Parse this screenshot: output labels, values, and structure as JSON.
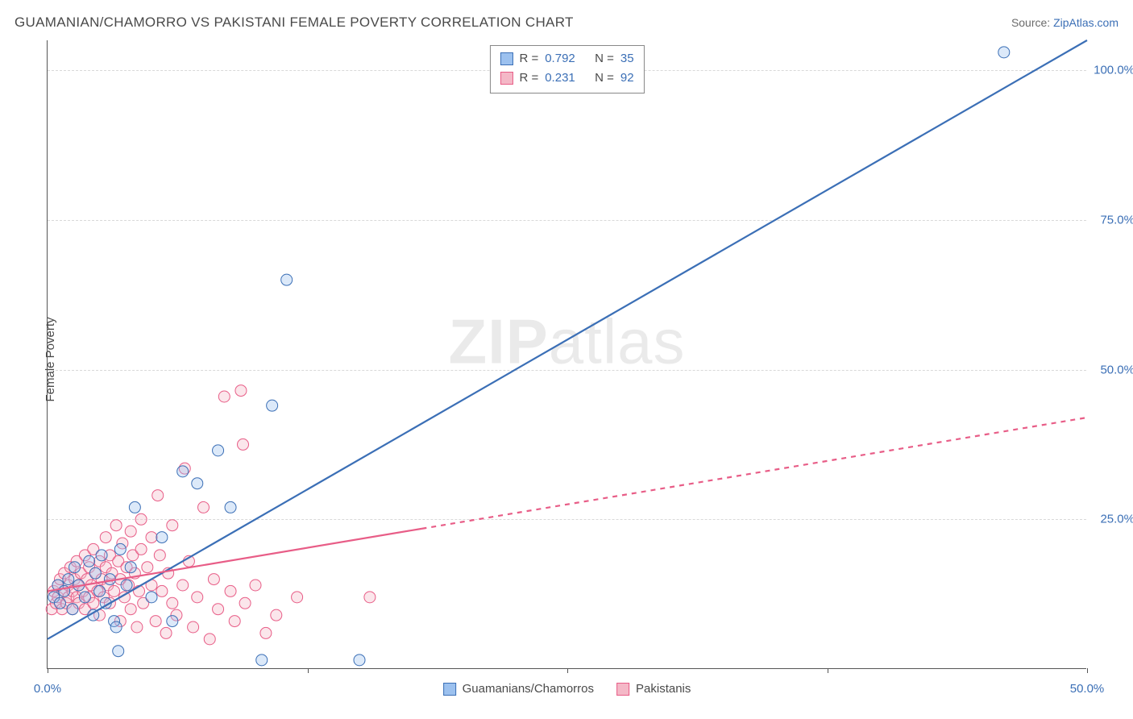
{
  "chart": {
    "type": "scatter-correlation",
    "title": "GUAMANIAN/CHAMORRO VS PAKISTANI FEMALE POVERTY CORRELATION CHART",
    "source_label": "Source: ",
    "source_name": "ZipAtlas.com",
    "ylabel": "Female Poverty",
    "watermark": "ZIPatlas",
    "background_color": "#ffffff",
    "axis_color": "#555555",
    "grid_color": "#d9d9d9",
    "label_color": "#4a4a4a",
    "tick_label_color": "#3b6fb6",
    "title_fontsize": 17,
    "label_fontsize": 15,
    "xlim": [
      0,
      50
    ],
    "ylim": [
      0,
      105
    ],
    "xticks": [
      0,
      12.5,
      25,
      37.5,
      50
    ],
    "xtick_labels": [
      "0.0%",
      "",
      "",
      "",
      "50.0%"
    ],
    "yticks": [
      25,
      50,
      75,
      100
    ],
    "ytick_labels": [
      "25.0%",
      "50.0%",
      "75.0%",
      "100.0%"
    ],
    "series": [
      {
        "key": "guamanian",
        "label": "Guamanians/Chamorros",
        "R": "0.792",
        "N": "35",
        "fill": "#9cc1ef",
        "stroke": "#3b6fb6",
        "trend": {
          "x1": 0,
          "y1": 5,
          "x2": 50,
          "y2": 105,
          "solid_until_x": 50,
          "width": 2.2
        },
        "points": [
          [
            0.3,
            12
          ],
          [
            0.5,
            14
          ],
          [
            0.6,
            11
          ],
          [
            0.8,
            13
          ],
          [
            1.0,
            15
          ],
          [
            1.2,
            10
          ],
          [
            1.3,
            17
          ],
          [
            1.5,
            14
          ],
          [
            1.8,
            12
          ],
          [
            2.0,
            18
          ],
          [
            2.2,
            9
          ],
          [
            2.3,
            16
          ],
          [
            2.5,
            13
          ],
          [
            2.8,
            11
          ],
          [
            3.0,
            15
          ],
          [
            3.2,
            8
          ],
          [
            3.4,
            3
          ],
          [
            3.5,
            20
          ],
          [
            3.8,
            14
          ],
          [
            4.0,
            17
          ],
          [
            4.2,
            27
          ],
          [
            5.0,
            12
          ],
          [
            5.5,
            22
          ],
          [
            6.0,
            8
          ],
          [
            6.5,
            33
          ],
          [
            7.2,
            31
          ],
          [
            8.2,
            36.5
          ],
          [
            8.8,
            27
          ],
          [
            10.3,
            1.5
          ],
          [
            10.8,
            44
          ],
          [
            11.5,
            65
          ],
          [
            15.0,
            1.5
          ],
          [
            3.3,
            7
          ],
          [
            2.6,
            19
          ],
          [
            46,
            103
          ]
        ]
      },
      {
        "key": "pakistani",
        "label": "Pakistanis",
        "R": "0.231",
        "N": "92",
        "fill": "#f4b8c7",
        "stroke": "#e85d87",
        "trend": {
          "x1": 0,
          "y1": 13,
          "x2": 50,
          "y2": 42,
          "solid_until_x": 18,
          "width": 2.2
        },
        "points": [
          [
            0.2,
            10
          ],
          [
            0.3,
            13
          ],
          [
            0.4,
            11
          ],
          [
            0.5,
            14
          ],
          [
            0.5,
            12
          ],
          [
            0.6,
            15
          ],
          [
            0.7,
            10
          ],
          [
            0.8,
            13
          ],
          [
            0.8,
            16
          ],
          [
            0.9,
            11
          ],
          [
            1.0,
            14
          ],
          [
            1.0,
            12
          ],
          [
            1.1,
            17
          ],
          [
            1.2,
            13
          ],
          [
            1.2,
            10
          ],
          [
            1.3,
            15
          ],
          [
            1.4,
            12
          ],
          [
            1.4,
            18
          ],
          [
            1.5,
            14
          ],
          [
            1.5,
            11
          ],
          [
            1.6,
            16
          ],
          [
            1.7,
            13
          ],
          [
            1.8,
            19
          ],
          [
            1.8,
            10
          ],
          [
            1.9,
            15
          ],
          [
            2.0,
            12
          ],
          [
            2.0,
            17
          ],
          [
            2.1,
            14
          ],
          [
            2.2,
            11
          ],
          [
            2.2,
            20
          ],
          [
            2.3,
            16
          ],
          [
            2.4,
            13
          ],
          [
            2.5,
            18
          ],
          [
            2.5,
            9
          ],
          [
            2.6,
            15
          ],
          [
            2.7,
            12
          ],
          [
            2.8,
            17
          ],
          [
            2.8,
            22
          ],
          [
            2.9,
            14
          ],
          [
            3.0,
            11
          ],
          [
            3.0,
            19
          ],
          [
            3.1,
            16
          ],
          [
            3.2,
            13
          ],
          [
            3.3,
            24
          ],
          [
            3.4,
            18
          ],
          [
            3.5,
            15
          ],
          [
            3.5,
            8
          ],
          [
            3.6,
            21
          ],
          [
            3.7,
            12
          ],
          [
            3.8,
            17
          ],
          [
            3.9,
            14
          ],
          [
            4.0,
            23
          ],
          [
            4.0,
            10
          ],
          [
            4.1,
            19
          ],
          [
            4.2,
            16
          ],
          [
            4.3,
            7
          ],
          [
            4.4,
            13
          ],
          [
            4.5,
            20
          ],
          [
            4.5,
            25
          ],
          [
            4.6,
            11
          ],
          [
            4.8,
            17
          ],
          [
            5.0,
            14
          ],
          [
            5.0,
            22
          ],
          [
            5.2,
            8
          ],
          [
            5.3,
            29
          ],
          [
            5.4,
            19
          ],
          [
            5.5,
            13
          ],
          [
            5.7,
            6
          ],
          [
            5.8,
            16
          ],
          [
            6.0,
            11
          ],
          [
            6.0,
            24
          ],
          [
            6.2,
            9
          ],
          [
            6.5,
            14
          ],
          [
            6.6,
            33.5
          ],
          [
            6.8,
            18
          ],
          [
            7.0,
            7
          ],
          [
            7.2,
            12
          ],
          [
            7.5,
            27
          ],
          [
            7.8,
            5
          ],
          [
            8.0,
            15
          ],
          [
            8.2,
            10
          ],
          [
            8.5,
            45.5
          ],
          [
            8.8,
            13
          ],
          [
            9.0,
            8
          ],
          [
            9.3,
            46.5
          ],
          [
            9.4,
            37.5
          ],
          [
            9.5,
            11
          ],
          [
            10.0,
            14
          ],
          [
            10.5,
            6
          ],
          [
            11.0,
            9
          ],
          [
            12.0,
            12
          ],
          [
            15.5,
            12
          ]
        ]
      }
    ],
    "point_radius": 7,
    "legend": {
      "r_label": "R =",
      "n_label": "N ="
    }
  }
}
